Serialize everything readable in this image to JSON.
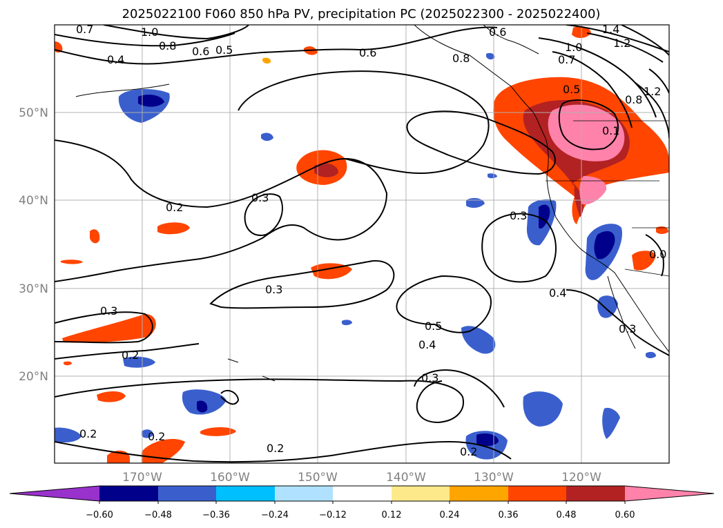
{
  "title": "2025022100 F060 850 hPa PV, precipitation PC (2025022300 - 2025022400)",
  "lat_labels": [
    "50°N",
    "40°N",
    "30°N",
    "20°N"
  ],
  "lon_labels": [
    "170°W",
    "160°W",
    "150°W",
    "140°W",
    "130°W",
    "120°W"
  ],
  "contour_labels": [
    "0.7",
    "1.0",
    "0.8",
    "0.6",
    "0.5",
    "0.4",
    "0.6",
    "0.6",
    "0.8",
    "1.4",
    "1.0",
    "1.2",
    "0.7",
    "0.5",
    "1.2",
    "0.8",
    "0.1",
    "0.2",
    "0.3",
    "0.3",
    "0.3",
    "0.4",
    "0.3",
    "0.5",
    "0.4",
    "0.3",
    "0.3",
    "0.2",
    "0.2",
    "0.2",
    "0.2",
    "0.2",
    "0.0"
  ],
  "colorbar": {
    "ticks": [
      "−0.60",
      "−0.48",
      "−0.36",
      "−0.24",
      "−0.12",
      "0.12",
      "0.24",
      "0.36",
      "0.48",
      "0.60"
    ],
    "colors": [
      "#9932cc",
      "#00008b",
      "#3a5fcd",
      "#00bfff",
      "#b0e2ff",
      "#ffffff",
      "#fde98a",
      "#ffa500",
      "#ff4500",
      "#b22222",
      "#ff82ab"
    ]
  }
}
